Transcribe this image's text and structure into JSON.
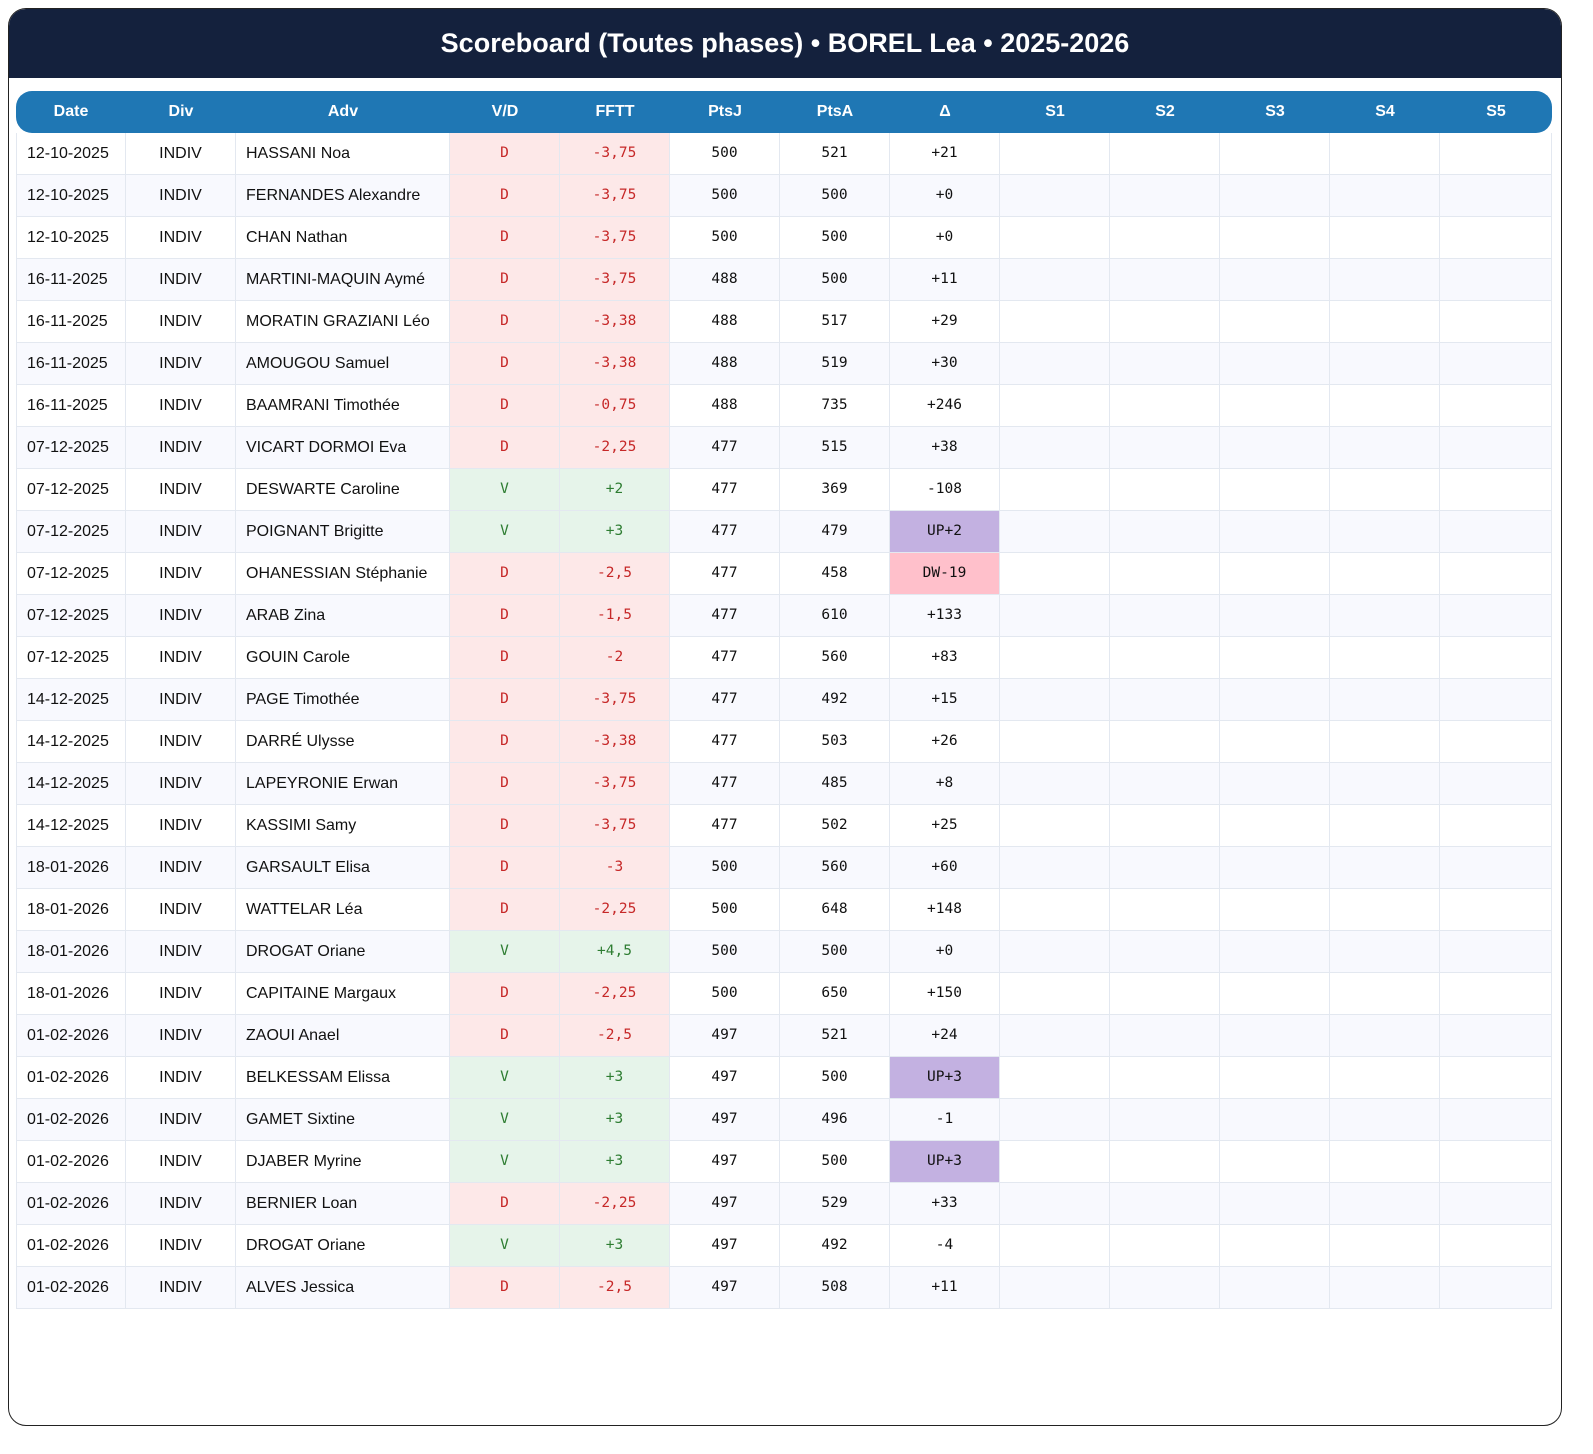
{
  "title": "Scoreboard (Toutes phases) • BOREL Lea • 2025-2026",
  "columns": [
    "Date",
    "Div",
    "Adv",
    "V/D",
    "FFTT",
    "PtsJ",
    "PtsA",
    "Δ",
    "S1",
    "S2",
    "S3",
    "S4",
    "S5"
  ],
  "colors": {
    "header": "#14213d",
    "table_header": "#1f77b4",
    "defeat_bg": "#fde8e8",
    "victory_bg": "#e6f4ea",
    "up_bg": "#c3b1e1",
    "down_bg": "#ffc0cb"
  },
  "rows": [
    [
      "12-10-2025",
      "INDIV",
      "HASSANI Noa",
      "D",
      "-3,75",
      "500",
      "521",
      "+21"
    ],
    [
      "12-10-2025",
      "INDIV",
      "FERNANDES Alexandre",
      "D",
      "-3,75",
      "500",
      "500",
      "+0"
    ],
    [
      "12-10-2025",
      "INDIV",
      "CHAN Nathan",
      "D",
      "-3,75",
      "500",
      "500",
      "+0"
    ],
    [
      "16-11-2025",
      "INDIV",
      "MARTINI-MAQUIN Aymé",
      "D",
      "-3,75",
      "488",
      "500",
      "+11"
    ],
    [
      "16-11-2025",
      "INDIV",
      "MORATIN GRAZIANI Léo",
      "D",
      "-3,38",
      "488",
      "517",
      "+29"
    ],
    [
      "16-11-2025",
      "INDIV",
      "AMOUGOU Samuel",
      "D",
      "-3,38",
      "488",
      "519",
      "+30"
    ],
    [
      "16-11-2025",
      "INDIV",
      "BAAMRANI Timothée",
      "D",
      "-0,75",
      "488",
      "735",
      "+246"
    ],
    [
      "07-12-2025",
      "INDIV",
      "VICART DORMOI Eva",
      "D",
      "-2,25",
      "477",
      "515",
      "+38"
    ],
    [
      "07-12-2025",
      "INDIV",
      "DESWARTE Caroline",
      "V",
      "+2",
      "477",
      "369",
      "-108"
    ],
    [
      "07-12-2025",
      "INDIV",
      "POIGNANT Brigitte",
      "V",
      "+3",
      "477",
      "479",
      "UP+2"
    ],
    [
      "07-12-2025",
      "INDIV",
      "OHANESSIAN Stéphanie",
      "D",
      "-2,5",
      "477",
      "458",
      "DW-19"
    ],
    [
      "07-12-2025",
      "INDIV",
      "ARAB Zina",
      "D",
      "-1,5",
      "477",
      "610",
      "+133"
    ],
    [
      "07-12-2025",
      "INDIV",
      "GOUIN Carole",
      "D",
      "-2",
      "477",
      "560",
      "+83"
    ],
    [
      "14-12-2025",
      "INDIV",
      "PAGE Timothée",
      "D",
      "-3,75",
      "477",
      "492",
      "+15"
    ],
    [
      "14-12-2025",
      "INDIV",
      "DARRÉ Ulysse",
      "D",
      "-3,38",
      "477",
      "503",
      "+26"
    ],
    [
      "14-12-2025",
      "INDIV",
      "LAPEYRONIE Erwan",
      "D",
      "-3,75",
      "477",
      "485",
      "+8"
    ],
    [
      "14-12-2025",
      "INDIV",
      "KASSIMI Samy",
      "D",
      "-3,75",
      "477",
      "502",
      "+25"
    ],
    [
      "18-01-2026",
      "INDIV",
      "GARSAULT Elisa",
      "D",
      "-3",
      "500",
      "560",
      "+60"
    ],
    [
      "18-01-2026",
      "INDIV",
      "WATTELAR Léa",
      "D",
      "-2,25",
      "500",
      "648",
      "+148"
    ],
    [
      "18-01-2026",
      "INDIV",
      "DROGAT Oriane",
      "V",
      "+4,5",
      "500",
      "500",
      "+0"
    ],
    [
      "18-01-2026",
      "INDIV",
      "CAPITAINE Margaux",
      "D",
      "-2,25",
      "500",
      "650",
      "+150"
    ],
    [
      "01-02-2026",
      "INDIV",
      "ZAOUI Anael",
      "D",
      "-2,5",
      "497",
      "521",
      "+24"
    ],
    [
      "01-02-2026",
      "INDIV",
      "BELKESSAM Elissa",
      "V",
      "+3",
      "497",
      "500",
      "UP+3"
    ],
    [
      "01-02-2026",
      "INDIV",
      "GAMET Sixtine",
      "V",
      "+3",
      "497",
      "496",
      "-1"
    ],
    [
      "01-02-2026",
      "INDIV",
      "DJABER Myrine",
      "V",
      "+3",
      "497",
      "500",
      "UP+3"
    ],
    [
      "01-02-2026",
      "INDIV",
      "BERNIER Loan",
      "D",
      "-2,25",
      "497",
      "529",
      "+33"
    ],
    [
      "01-02-2026",
      "INDIV",
      "DROGAT Oriane",
      "V",
      "+3",
      "497",
      "492",
      "-4"
    ],
    [
      "01-02-2026",
      "INDIV",
      "ALVES Jessica",
      "D",
      "-2,5",
      "497",
      "508",
      "+11"
    ]
  ]
}
